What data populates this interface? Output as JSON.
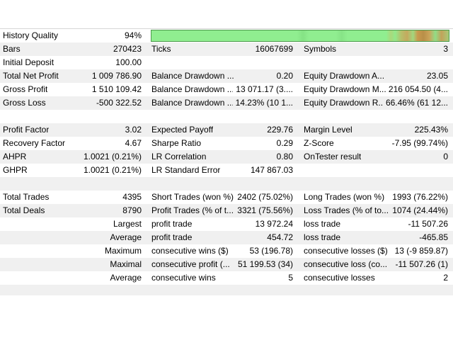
{
  "app": "MetaTrader Strategy Tester Backtest Report",
  "colors": {
    "background": "#ffffff",
    "row_stripe": "#f0f0f0",
    "table_top_border": "#d6d6d6",
    "quality_bar_fill": "#90ee90",
    "quality_bar_border": "#4c9b4c",
    "quality_bar_warning_streaks": [
      "#b7bf6a",
      "#c4a95e",
      "#b98f48"
    ]
  },
  "quality_bar": {
    "value_percent": 94
  },
  "report": {
    "rows": [
      {
        "c1l": "History Quality",
        "c1v": "94%"
      },
      {
        "c1l": "Bars",
        "c1v": "270423",
        "c2l": "Ticks",
        "c2v": "16067699",
        "c3l": "Symbols",
        "c3v": "3"
      },
      {
        "c1l": "Initial Deposit",
        "c1v": "100.00"
      },
      {
        "c1l": "Total Net Profit",
        "c1v": "1 009 786.90",
        "c2l": "Balance Drawdown ...",
        "c2v": "0.20",
        "c3l": "Equity Drawdown A...",
        "c3v": "23.05"
      },
      {
        "c1l": "Gross Profit",
        "c1v": "1 510 109.42",
        "c2l": "Balance Drawdown ...",
        "c2v": "13 071.17 (3....",
        "c3l": "Equity Drawdown M...",
        "c3v": "216 054.50 (4..."
      },
      {
        "c1l": "Gross Loss",
        "c1v": "-500 322.52",
        "c2l": "Balance Drawdown ...",
        "c2v": "14.23% (10 1...",
        "c3l": "Equity Drawdown R...",
        "c3v": "66.46% (61 12..."
      },
      {},
      {
        "c1l": "Profit Factor",
        "c1v": "3.02",
        "c2l": "Expected Payoff",
        "c2v": "229.76",
        "c3l": "Margin Level",
        "c3v": "225.43%"
      },
      {
        "c1l": "Recovery Factor",
        "c1v": "4.67",
        "c2l": "Sharpe Ratio",
        "c2v": "0.29",
        "c3l": "Z-Score",
        "c3v": "-7.95 (99.74%)"
      },
      {
        "c1l": "AHPR",
        "c1v": "1.0021 (0.21%)",
        "c2l": "LR Correlation",
        "c2v": "0.80",
        "c3l": "OnTester result",
        "c3v": "0"
      },
      {
        "c1l": "GHPR",
        "c1v": "1.0021 (0.21%)",
        "c2l": "LR Standard Error",
        "c2v": "147 867.03"
      },
      {},
      {
        "c1l": "Total Trades",
        "c1v": "4395",
        "c2l": "Short Trades (won %)",
        "c2v": "2402 (75.02%)",
        "c3l": "Long Trades (won %)",
        "c3v": "1993 (76.22%)"
      },
      {
        "c1l": "Total Deals",
        "c1v": "8790",
        "c2l": "Profit Trades (% of t...",
        "c2v": "3321 (75.56%)",
        "c3l": "Loss Trades (% of to...",
        "c3v": "1074 (24.44%)"
      },
      {
        "c1v": "Largest",
        "c2l": "profit trade",
        "c2v": "13 972.24",
        "c3l": "loss trade",
        "c3v": "-11 507.26"
      },
      {
        "c1v": "Average",
        "c2l": "profit trade",
        "c2v": "454.72",
        "c3l": "loss trade",
        "c3v": "-465.85"
      },
      {
        "c1v": "Maximum",
        "c2l": "consecutive wins ($)",
        "c2v": "53 (196.78)",
        "c3l": "consecutive losses ($)",
        "c3v": "13 (-9 859.87)"
      },
      {
        "c1v": "Maximal",
        "c2l": "consecutive profit (...",
        "c2v": "51 199.53 (34)",
        "c3l": "consecutive loss (co...",
        "c3v": "-11 507.26 (1)"
      },
      {
        "c1v": "Average",
        "c2l": "consecutive wins",
        "c2v": "5",
        "c3l": "consecutive losses",
        "c3v": "2"
      },
      {}
    ]
  }
}
